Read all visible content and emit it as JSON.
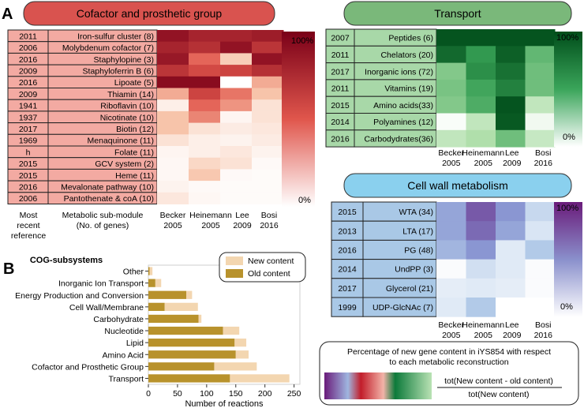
{
  "panel_labels": {
    "a": "A",
    "b": "B"
  },
  "cofactor": {
    "title": "Cofactor and prosthetic group",
    "years": [
      "2011",
      "2006",
      "2016",
      "2009",
      "2016",
      "2009",
      "1941",
      "1937",
      "2017",
      "1969",
      "h",
      "2015",
      "2015",
      "2016",
      "2006"
    ],
    "modules": [
      "Iron-sulfur cluster (8)",
      "Molybdenum cofactor (7)",
      "Staphylopine (3)",
      "Staphyloferrin B (6)",
      "Lipoate (5)",
      "Thiamin (14)",
      "Riboflavin (10)",
      "Nicotinate (10)",
      "Biotin (12)",
      "Menaquinone (11)",
      "Folate (11)",
      "GCV system (2)",
      "Heme (11)",
      "Mevalonate pathway (10)",
      "Pantothenate & coA (10)"
    ],
    "matrix": [
      [
        0.92,
        0.85,
        0.85,
        0.88
      ],
      [
        0.85,
        0.8,
        0.92,
        0.78
      ],
      [
        0.9,
        0.6,
        0.25,
        0.92
      ],
      [
        0.78,
        0.7,
        0.72,
        0.8
      ],
      [
        0.95,
        0.95,
        0.0,
        0.38
      ],
      [
        0.38,
        0.72,
        0.55,
        0.3
      ],
      [
        0.08,
        0.6,
        0.45,
        0.15
      ],
      [
        0.3,
        0.5,
        0.05,
        0.15
      ],
      [
        0.3,
        0.15,
        0.1,
        0.12
      ],
      [
        0.15,
        0.08,
        0.06,
        0.1
      ],
      [
        0.05,
        0.08,
        0.12,
        0.06
      ],
      [
        0.04,
        0.2,
        0.15,
        0.03
      ],
      [
        0.04,
        0.28,
        0.03,
        0.02
      ],
      [
        0.06,
        0.03,
        0.02,
        0.02
      ],
      [
        0.12,
        0.04,
        0.02,
        0.02
      ]
    ],
    "scale_max": "100%",
    "scale_min": "0%",
    "footer_year": "Most recent reference",
    "footer_module": "Metabolic sub-module (No. of genes)"
  },
  "transport": {
    "title": "Transport",
    "years": [
      "2007",
      "2011",
      "2017",
      "2011",
      "2015",
      "2014",
      "2016"
    ],
    "modules": [
      "Peptides (6)",
      "Chelators (20)",
      "Inorganic ions (72)",
      "Vitamins (19)",
      "Amino acids(33)",
      "Polyamines (12)",
      "Carbodydrates(36)"
    ],
    "matrix": [
      [
        0.97,
        0.97,
        0.97,
        0.97
      ],
      [
        0.88,
        0.68,
        0.92,
        0.52
      ],
      [
        0.42,
        0.72,
        0.85,
        0.48
      ],
      [
        0.45,
        0.62,
        0.78,
        0.48
      ],
      [
        0.42,
        0.58,
        0.97,
        0.22
      ],
      [
        0.02,
        0.22,
        0.95,
        0.05
      ],
      [
        0.22,
        0.28,
        0.48,
        0.2
      ]
    ],
    "scale_max": "100%",
    "scale_min": "0%"
  },
  "cellwall": {
    "title": "Cell wall metabolism",
    "years": [
      "2015",
      "2013",
      "2016",
      "2014",
      "2017",
      "1999"
    ],
    "modules": [
      "WTA (34)",
      "LTA (17)",
      "PG (48)",
      "UndPP (3)",
      "Glycerol (21)",
      "UDP-GlcNAc (7)"
    ],
    "matrix": [
      [
        0.48,
        0.78,
        0.55,
        0.22
      ],
      [
        0.48,
        0.72,
        0.48,
        0.15
      ],
      [
        0.4,
        0.55,
        0.12,
        0.3
      ],
      [
        0.02,
        0.18,
        0.12,
        0.02
      ],
      [
        0.1,
        0.12,
        0.1,
        0.02
      ],
      [
        0.12,
        0.3,
        0.0,
        0.0
      ]
    ],
    "scale_max": "100%",
    "scale_min": "0%"
  },
  "columns": [
    {
      "name": "Becker",
      "year": "2005"
    },
    {
      "name": "Heinemann",
      "year": "2005"
    },
    {
      "name": "Lee",
      "year": "2009"
    },
    {
      "name": "Bosi",
      "year": "2016"
    }
  ],
  "colors": {
    "red_header": "#d9534f",
    "red_cell": "#f3aaa2",
    "red_high": "#7a0018",
    "green_header": "#7ab87a",
    "green_cell": "#a8d8a8",
    "green_high": "#004d1a",
    "blue_header": "#8ad0ee",
    "blue_cell": "#a9c8e6",
    "purple_high": "#6a1b7a",
    "gold_old": "#b8922c",
    "tan_new": "#f3d6b0"
  },
  "legend_box": {
    "title_line1": "Percentage of new gene content in iYS854 with respect",
    "title_line2": "to each metabolic reconstruction",
    "formula_numerator": "tot(New content - old content)",
    "formula_denominator": "tot(New content)"
  },
  "chart_data": {
    "type": "bar",
    "stacked": true,
    "title": "COG-subsystems",
    "categories": [
      "Other",
      "Inorganic Ion Transport",
      "Energy Production and Conversion",
      "Cell Wall/Membrane",
      "Carbohydrate",
      "Nucleotide",
      "Lipid",
      "Amino Acid",
      "Cofactor and Prosthetic Group",
      "Transport"
    ],
    "series": [
      {
        "name": "Old content",
        "values": [
          2,
          12,
          65,
          28,
          86,
          128,
          148,
          150,
          113,
          140
        ]
      },
      {
        "name": "New content",
        "values": [
          5,
          10,
          10,
          57,
          5,
          28,
          20,
          22,
          73,
          102
        ]
      }
    ],
    "xlabel": "Number of reactions",
    "ylabel": "",
    "xlim": [
      0,
      260
    ],
    "xticks": [
      0,
      50,
      100,
      150,
      200,
      250
    ],
    "legend": [
      "New content",
      "Old content"
    ],
    "legend_position": "top-right"
  }
}
